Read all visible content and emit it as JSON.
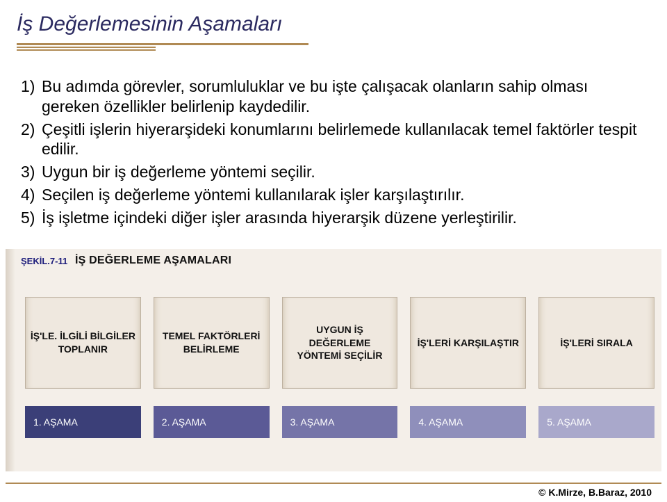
{
  "title": "İş Değerlemesinin Aşamaları",
  "title_style": {
    "color": "#2b2a60",
    "fontsize_pt": 22,
    "italic": true
  },
  "underline_color": "#b08a54",
  "body": {
    "fontsize_pt": 17,
    "color": "#000000",
    "items": [
      {
        "num": "1)",
        "text": "Bu adımda görevler, sorumluluklar ve bu işte çalışacak olanların sahip olması gereken özellikler belirlenip kaydedilir."
      },
      {
        "num": "2)",
        "text": "Çeşitli işlerin hiyerarşideki konumlarını belirlemede kullanılacak temel faktörler tespit edilir."
      },
      {
        "num": "3)",
        "text": "Uygun bir iş değerleme yöntemi seçilir."
      },
      {
        "num": "4)",
        "text": "Seçilen iş değerleme yöntemi kullanılarak işler karşılaştırılır."
      },
      {
        "num": "5)",
        "text": "İş işletme içindeki diğer işler arasında hiyerarşik düzene yerleştirilir."
      }
    ]
  },
  "figure": {
    "background_color": "#f4efe9",
    "label": "ŞEKİL.7-11",
    "label_color": "#1b1b7a",
    "title": "İŞ DEĞERLEME AŞAMALARI",
    "title_color": "#111111",
    "box_bg": "#efe8df",
    "box_border": "#bdb1a0",
    "box_text_color": "#111111",
    "box_fontsize_pt": 10,
    "boxes": [
      "İŞ'LE. İLGİLİ BİLGİLER TOPLANIR",
      "TEMEL FAKTÖRLERİ BELİRLEME",
      "UYGUN İŞ DEĞERLEME YÖNTEMİ SEÇİLİR",
      "İŞ'LERİ KARŞILAŞTIR",
      "İŞ'LERİ SIRALA"
    ],
    "stage_fontsize_pt": 10,
    "stage_text_color": "#ffffff",
    "stages": [
      {
        "label": "1. AŞAMA",
        "color": "#3b3f78"
      },
      {
        "label": "2. AŞAMA",
        "color": "#5b5a96"
      },
      {
        "label": "3. AŞAMA",
        "color": "#7574a8"
      },
      {
        "label": "4. AŞAMA",
        "color": "#8f8fbb"
      },
      {
        "label": "5. AŞAMA",
        "color": "#a9a8cb"
      }
    ]
  },
  "footer": {
    "credit": "© K.Mirze, B.Baraz, 2010",
    "line_color": "#b08a54",
    "fontsize_pt": 11
  }
}
